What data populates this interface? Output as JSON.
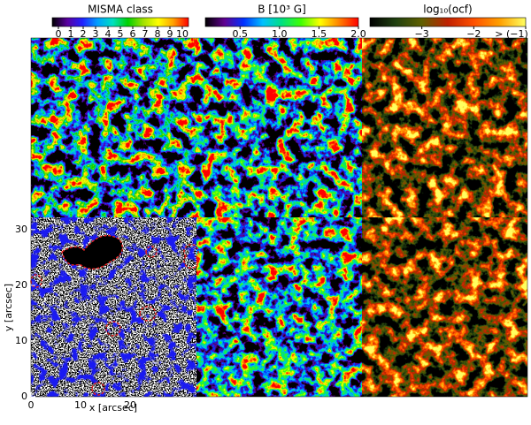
{
  "colorbars": [
    {
      "title": "MISMA class",
      "lim": [
        -0.5,
        10.5
      ],
      "ticks": [
        0,
        1,
        2,
        3,
        4,
        5,
        6,
        7,
        8,
        9,
        10
      ],
      "colormap": [
        "#000000",
        "#5a00a0",
        "#2020ff",
        "#00a0ff",
        "#00e0c0",
        "#00d000",
        "#a0e000",
        "#ffff00",
        "#ffa000",
        "#ff0000"
      ]
    },
    {
      "title": "B [10³ G]",
      "lim": [
        0.06,
        2.0
      ],
      "ticks": [
        0.5,
        {
          "value": 1,
          "label": "1.0"
        },
        1.5,
        {
          "value": 2,
          "label": "2.0"
        }
      ],
      "colormap": [
        "#000000",
        "#600090",
        "#0030ff",
        "#00c0ff",
        "#00e080",
        "#40ff00",
        "#ffff00",
        "#ff8000",
        "#ff0000"
      ]
    },
    {
      "title": "log₁₀(ocf)",
      "lim": [
        -4,
        -1
      ],
      "ticks": [
        {
          "value": -3,
          "label": "−3"
        },
        {
          "value": -2,
          "label": "−2"
        },
        {
          "value": -1,
          "label": "> (−1)"
        }
      ],
      "colormap": [
        "#000000",
        "#204010",
        "#606000",
        "#c02000",
        "#ff5000",
        "#ffa000",
        "#ffff60"
      ]
    }
  ],
  "axes": {
    "xlabel": "x [arcsec]",
    "ylabel": "y [arcsec]",
    "xlim": [
      0,
      33.4
    ],
    "ylim": [
      0,
      32.2
    ],
    "xticks": [
      0,
      10,
      20
    ],
    "yticks": [
      0,
      10,
      20,
      30
    ]
  }
}
